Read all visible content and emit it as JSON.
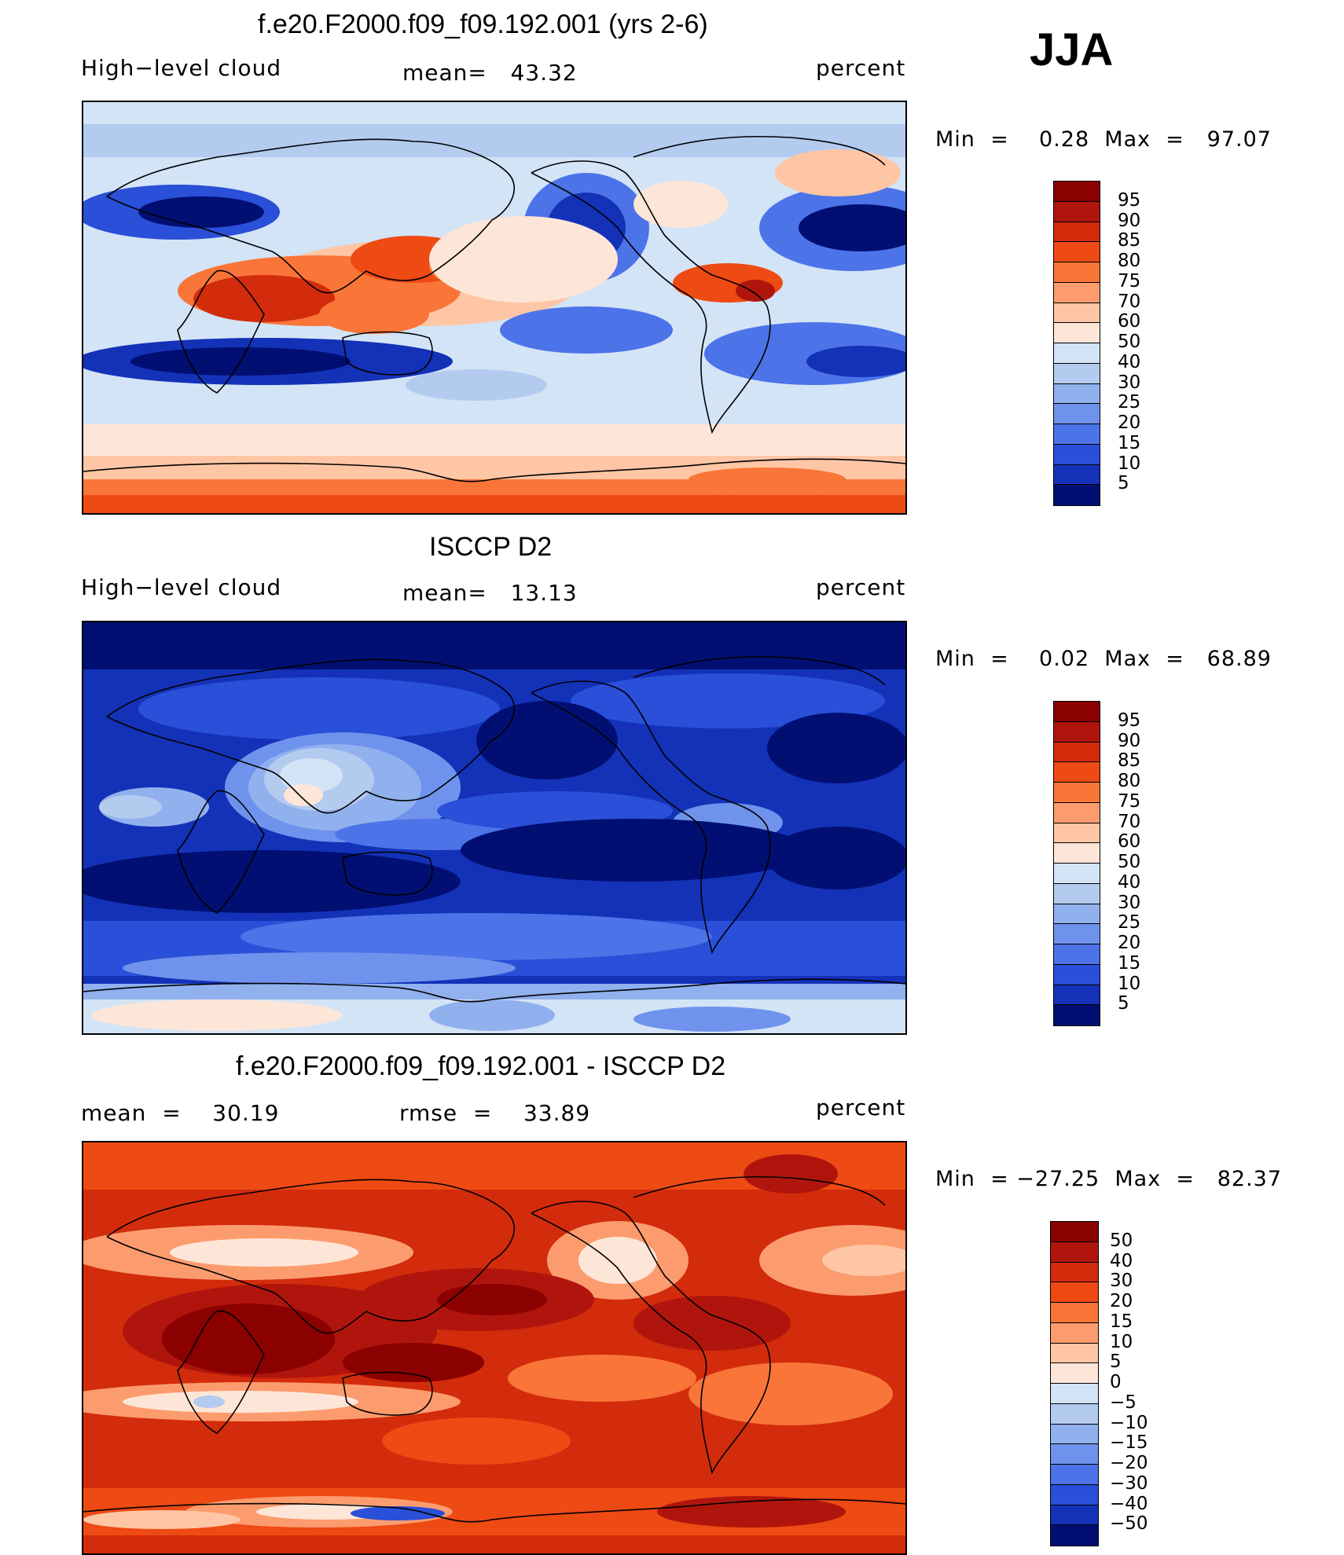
{
  "season": "JJA",
  "units_label": "percent",
  "panels": [
    {
      "title": "f.e20.F2000.f09_f09.192.001 (yrs 2-6)",
      "left_label": "High−level cloud",
      "mid_label": "mean=   43.32",
      "right_label": "percent",
      "minmax": "Min  =    0.28  Max  =   97.07",
      "colorbar_labels": [
        "95",
        "90",
        "85",
        "80",
        "75",
        "70",
        "60",
        "50",
        "40",
        "30",
        "25",
        "20",
        "15",
        "10",
        "5"
      ],
      "colorbar_colors": [
        "#8b0000",
        "#b0150d",
        "#d22c0c",
        "#ee4a14",
        "#f97538",
        "#fc9c6e",
        "#fec6a5",
        "#fde6d8",
        "#d3e4f6",
        "#b4cbf0",
        "#91b0ee",
        "#6f93ec",
        "#4d73e8",
        "#2a4fd8",
        "#1332b8",
        "#020f72"
      ],
      "chart_data": {
        "type": "heatmap",
        "title": "f.e20.F2000.f09_f09.192.001 (yrs 2-6)",
        "variable": "High−level cloud",
        "units": "percent",
        "mean": 43.32,
        "min": 0.28,
        "max": 97.07,
        "contour_levels": [
          5,
          10,
          15,
          20,
          25,
          30,
          40,
          50,
          60,
          70,
          75,
          80,
          85,
          90,
          95
        ]
      }
    },
    {
      "title": "ISCCP D2",
      "left_label": "High−level cloud",
      "mid_label": "mean=   13.13",
      "right_label": "percent",
      "minmax": "Min  =    0.02  Max  =   68.89",
      "colorbar_labels": [
        "95",
        "90",
        "85",
        "80",
        "75",
        "70",
        "60",
        "50",
        "40",
        "30",
        "25",
        "20",
        "15",
        "10",
        "5"
      ],
      "colorbar_colors": [
        "#8b0000",
        "#b0150d",
        "#d22c0c",
        "#ee4a14",
        "#f97538",
        "#fc9c6e",
        "#fec6a5",
        "#fde6d8",
        "#d3e4f6",
        "#b4cbf0",
        "#91b0ee",
        "#6f93ec",
        "#4d73e8",
        "#2a4fd8",
        "#1332b8",
        "#020f72"
      ],
      "chart_data": {
        "type": "heatmap",
        "title": "ISCCP D2",
        "variable": "High−level cloud",
        "units": "percent",
        "mean": 13.13,
        "min": 0.02,
        "max": 68.89,
        "contour_levels": [
          5,
          10,
          15,
          20,
          25,
          30,
          40,
          50,
          60,
          70,
          75,
          80,
          85,
          90,
          95
        ]
      }
    },
    {
      "title": "f.e20.F2000.f09_f09.192.001 - ISCCP D2",
      "left_label": "mean  =    30.19",
      "mid_label": "rmse  =    33.89",
      "right_label": "percent",
      "minmax": "Min  = −27.25  Max  =   82.37",
      "colorbar_labels": [
        "50",
        "40",
        "30",
        "20",
        "15",
        "10",
        "5",
        "0",
        "−5",
        "−10",
        "−15",
        "−20",
        "−30",
        "−40",
        "−50"
      ],
      "colorbar_colors": [
        "#8b0000",
        "#b0150d",
        "#d22c0c",
        "#ee4a14",
        "#f97538",
        "#fc9c6e",
        "#fec6a5",
        "#fde6d8",
        "#d3e4f6",
        "#b4cbf0",
        "#91b0ee",
        "#6f93ec",
        "#4d73e8",
        "#2a4fd8",
        "#1332b8",
        "#020f72"
      ],
      "chart_data": {
        "type": "heatmap",
        "title": "f.e20.F2000.f09_f09.192.001 - ISCCP D2",
        "units": "percent",
        "mean": 30.19,
        "rmse": 33.89,
        "min": -27.25,
        "max": 82.37,
        "contour_levels": [
          -50,
          -40,
          -30,
          -20,
          -15,
          -10,
          -5,
          0,
          5,
          10,
          15,
          20,
          30,
          40,
          50
        ]
      }
    }
  ]
}
